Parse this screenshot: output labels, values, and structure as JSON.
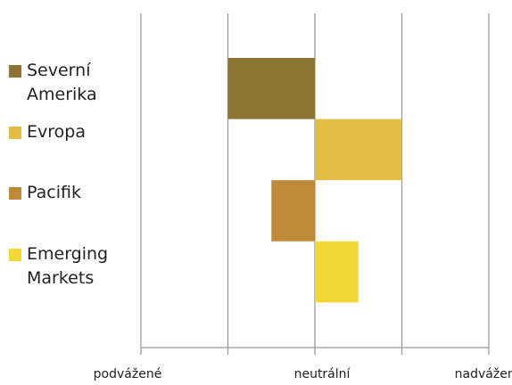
{
  "chart_data": {
    "type": "diverging-bar",
    "categories": [
      "Severní Amerika",
      "Evropa",
      "Pacifik",
      "Emerging Markets"
    ],
    "values": [
      -1,
      1,
      -0.5,
      0.5
    ],
    "colors": [
      "#8b7530",
      "#e2bc45",
      "#be8a3a",
      "#f2d835"
    ],
    "xlim": [
      -2,
      2
    ],
    "xticks": [
      {
        "value": -2,
        "label": "podvážené"
      },
      {
        "value": -1,
        "label": null
      },
      {
        "value": 0,
        "label": "neutrální"
      },
      {
        "value": 1,
        "label": null
      },
      {
        "value": 2,
        "label": "nadvážené"
      }
    ],
    "grid": true
  }
}
